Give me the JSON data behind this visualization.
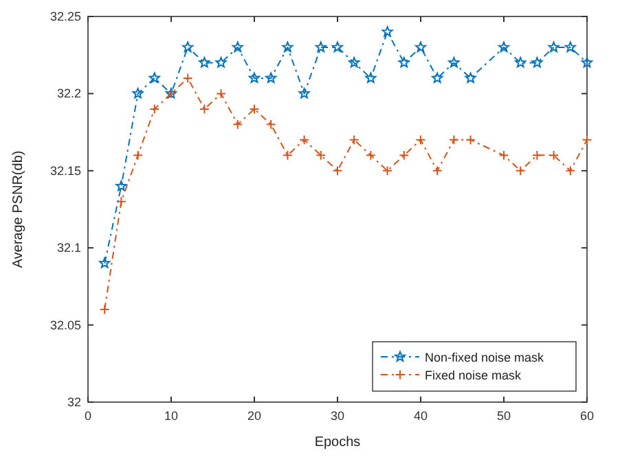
{
  "chart_data": {
    "type": "line",
    "xlabel": "Epochs",
    "ylabel": "Average PSNR(db)",
    "xlim": [
      0,
      60
    ],
    "xticks": [
      0,
      10,
      20,
      30,
      40,
      50,
      60
    ],
    "ylim": [
      32,
      32.25
    ],
    "yticks": [
      32,
      32.05,
      32.1,
      32.15,
      32.2,
      32.25
    ],
    "grid": false,
    "legend": "bottom right",
    "line_style": "dashed",
    "x": [
      2,
      4,
      6,
      8,
      10,
      12,
      14,
      16,
      18,
      20,
      22,
      24,
      26,
      28,
      30,
      32,
      34,
      36,
      38,
      40,
      42,
      44,
      46,
      50,
      52,
      54,
      56,
      58,
      60
    ],
    "series": [
      {
        "name": "Non-fixed noise mask",
        "color": "#0072bd",
        "marker": "star",
        "values": [
          32.09,
          32.14,
          32.2,
          32.21,
          32.2,
          32.23,
          32.22,
          32.22,
          32.23,
          32.21,
          32.21,
          32.23,
          32.2,
          32.23,
          32.23,
          32.22,
          32.21,
          32.24,
          32.22,
          32.23,
          32.21,
          32.22,
          32.21,
          32.23,
          32.22,
          32.22,
          32.23,
          32.23,
          32.22
        ]
      },
      {
        "name": "Fixed noise mask",
        "color": "#d95319",
        "marker": "cross",
        "values": [
          32.06,
          32.13,
          32.16,
          32.19,
          32.2,
          32.21,
          32.19,
          32.2,
          32.18,
          32.19,
          32.18,
          32.16,
          32.17,
          32.16,
          32.15,
          32.17,
          32.16,
          32.15,
          32.16,
          32.17,
          32.15,
          32.17,
          32.17,
          32.16,
          32.15,
          32.16,
          32.16,
          32.15,
          32.17
        ]
      }
    ]
  }
}
